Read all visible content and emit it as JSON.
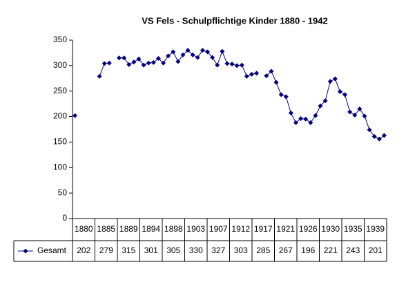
{
  "chart_data": {
    "type": "line",
    "title": "VS Fels - Schulpflichtige Kinder 1880 - 1942",
    "categories": [
      "1880",
      null,
      null,
      null,
      null,
      "1885",
      null,
      null,
      null,
      "1889",
      null,
      null,
      null,
      null,
      "1894",
      null,
      null,
      null,
      "1898",
      null,
      null,
      null,
      null,
      "1903",
      null,
      null,
      null,
      "1907",
      null,
      null,
      null,
      null,
      "1912",
      null,
      null,
      null,
      null,
      "1917",
      null,
      null,
      null,
      "1921",
      null,
      null,
      null,
      null,
      "1926",
      null,
      null,
      null,
      "1930",
      null,
      null,
      null,
      null,
      "1935",
      null,
      null,
      null,
      "1939",
      null,
      null,
      null,
      null
    ],
    "series": [
      {
        "name": "Gesamt",
        "color": "#000080",
        "values": [
          202,
          null,
          null,
          null,
          null,
          279,
          304,
          305,
          null,
          315,
          315,
          302,
          307,
          313,
          301,
          305,
          306,
          314,
          305,
          319,
          327,
          308,
          321,
          330,
          321,
          316,
          330,
          327,
          316,
          301,
          328,
          304,
          303,
          300,
          301,
          279,
          283,
          285,
          null,
          280,
          289,
          267,
          243,
          239,
          207,
          188,
          196,
          195,
          188,
          202,
          221,
          231,
          269,
          274,
          249,
          243,
          209,
          203,
          215,
          201,
          174,
          161,
          156,
          163
        ]
      }
    ],
    "ylim": [
      0,
      350
    ],
    "yticks": [
      0,
      50,
      100,
      150,
      200,
      250,
      300,
      350
    ],
    "grid": false
  }
}
